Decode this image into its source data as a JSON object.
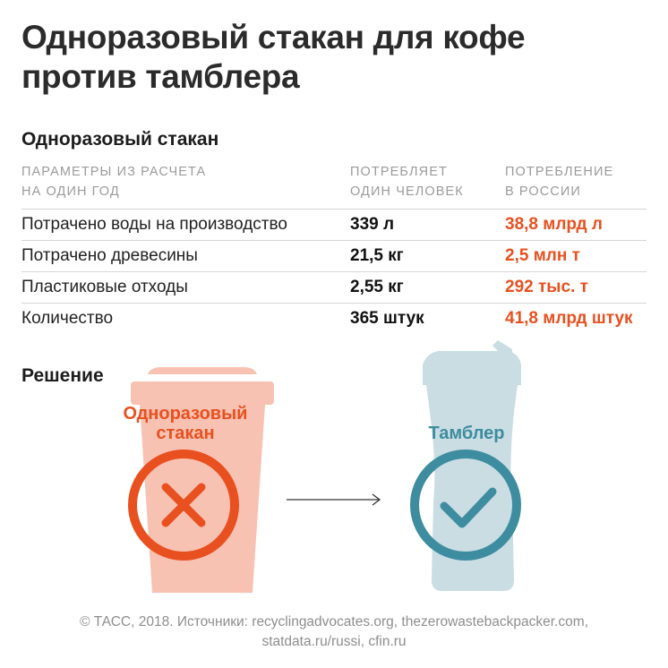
{
  "title": {
    "line1": "Одноразовый стакан для кофе",
    "line2": "против тамблера"
  },
  "section_title": "Одноразовый стакан",
  "columns": {
    "param": {
      "line1": "ПАРАМЕТРЫ ИЗ РАСЧЕТА",
      "line2": "НА ОДИН ГОД"
    },
    "person": {
      "line1": "ПОТРЕБЛЯЕТ",
      "line2": "ОДИН ЧЕЛОВЕК"
    },
    "russia": {
      "line1": "ПОТРЕБЛЕНИЕ",
      "line2": "В РОССИИ"
    }
  },
  "rows": [
    {
      "param": "Потрачено воды на производство",
      "person": "339 л",
      "russia": "38,8 млрд л"
    },
    {
      "param": "Потрачено древесины",
      "person": "21,5 кг",
      "russia": "2,5 млн т"
    },
    {
      "param": "Пластиковые отходы",
      "person": "2,55 кг",
      "russia": "292 тыс. т"
    },
    {
      "param": "Количество",
      "person": "365 штук",
      "russia": "41,8 млрд штук"
    }
  ],
  "solution": {
    "heading": "Решение",
    "cup_label_line1": "Одноразовый",
    "cup_label_line2": "стакан",
    "tumbler_label": "Тамблер"
  },
  "footer": {
    "line1": "© ТАСС, 2018. Источники: recyclingadvocates.org, thezerowastebackpacker.com,",
    "line2": "statdata.ru/russi, cfin.ru"
  },
  "colors": {
    "accent_orange": "#e9501f",
    "cup_fill": "#f8c2b2",
    "tumbler_fill": "#c9dde3",
    "teal": "#3e8c9f"
  },
  "icons": [
    "cross-icon",
    "checkmark-icon",
    "arrow-right-icon"
  ]
}
